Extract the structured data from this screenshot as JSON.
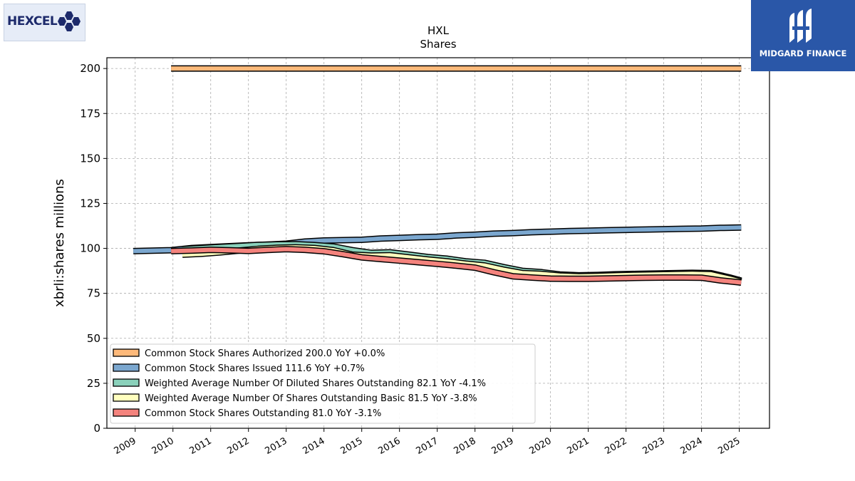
{
  "logos": {
    "left": "HEXCEL",
    "right": "MIDGARD FINANCE"
  },
  "chart_data": {
    "type": "line",
    "title": "HXL",
    "subtitle": "Shares",
    "ylabel": "xbrli:shares millions",
    "xlabel": "",
    "ylim": [
      0,
      206
    ],
    "yticks": [
      0,
      25,
      50,
      75,
      100,
      125,
      150,
      175,
      200
    ],
    "xticks": [
      "2009",
      "2010",
      "2011",
      "2012",
      "2013",
      "2014",
      "2015",
      "2016",
      "2017",
      "2018",
      "2019",
      "2020",
      "2021",
      "2022",
      "2023",
      "2024",
      "2025"
    ],
    "xlim": [
      2008.25,
      2025.8
    ],
    "grid": true,
    "legend_position": "bottom-left",
    "series": [
      {
        "name": "Common Stock Shares Authorized  200.0 YoY +0.0%",
        "color": "#fdb97a",
        "x": [
          2009.95,
          2025.05
        ],
        "y": [
          200,
          200
        ]
      },
      {
        "name": "Common Stock Shares Issued  111.6 YoY +0.7%",
        "color": "#7ba7cf",
        "x": [
          2008.95,
          2009.95,
          2010.5,
          2011.0,
          2011.5,
          2012.0,
          2012.5,
          2013.0,
          2013.5,
          2014.0,
          2014.5,
          2015.0,
          2015.5,
          2016.0,
          2016.5,
          2017.0,
          2017.5,
          2018.0,
          2018.5,
          2019.0,
          2019.5,
          2020.0,
          2020.5,
          2021.0,
          2021.5,
          2022.0,
          2022.5,
          2023.0,
          2023.5,
          2024.0,
          2024.5,
          2025.05
        ],
        "y": [
          98.5,
          99.0,
          100.2,
          100.7,
          101.2,
          101.7,
          102.1,
          102.6,
          103.8,
          104.4,
          104.6,
          104.8,
          105.5,
          105.8,
          106.2,
          106.5,
          107.2,
          107.6,
          108.2,
          108.5,
          109.0,
          109.3,
          109.6,
          109.8,
          110.1,
          110.3,
          110.5,
          110.7,
          110.9,
          111.0,
          111.4,
          111.6
        ]
      },
      {
        "name": "Weighted Average Number Of Diluted Shares Outstanding  82.1 YoY -4.1%",
        "color": "#8ad1bb",
        "x": [
          2010.25,
          2010.75,
          2011.25,
          2011.75,
          2012.25,
          2012.75,
          2013.25,
          2013.75,
          2014.25,
          2014.75,
          2015.25,
          2015.75,
          2016.25,
          2016.75,
          2017.25,
          2017.75,
          2018.25,
          2018.75,
          2019.25,
          2019.75,
          2020.25,
          2020.75,
          2021.25,
          2021.75,
          2022.25,
          2022.75,
          2023.25,
          2023.75,
          2024.25,
          2024.75,
          2025.05
        ],
        "y": [
          99.5,
          100.2,
          100.8,
          101.3,
          101.9,
          102.2,
          102.3,
          101.8,
          101.0,
          99.0,
          97.5,
          97.8,
          96.5,
          95.2,
          94.3,
          92.8,
          92.0,
          89.6,
          87.5,
          86.8,
          85.5,
          85.0,
          85.2,
          85.6,
          85.8,
          86.0,
          86.2,
          86.4,
          86.2,
          83.8,
          82.1
        ]
      },
      {
        "name": "Weighted Average Number Of Shares Outstanding Basic  81.5 YoY -3.8%",
        "color": "#ffffbe",
        "x": [
          2010.25,
          2010.75,
          2011.25,
          2011.75,
          2012.25,
          2012.75,
          2013.25,
          2013.75,
          2014.25,
          2014.75,
          2015.25,
          2015.75,
          2016.25,
          2016.75,
          2017.25,
          2017.75,
          2018.25,
          2018.75,
          2019.25,
          2019.75,
          2020.25,
          2020.75,
          2021.25,
          2021.75,
          2022.25,
          2022.75,
          2023.25,
          2023.75,
          2024.25,
          2024.75,
          2025.05
        ],
        "y": [
          96.5,
          97.0,
          97.8,
          98.8,
          99.7,
          100.3,
          100.6,
          100.2,
          99.0,
          96.5,
          96.0,
          96.2,
          95.0,
          93.8,
          92.8,
          91.5,
          90.5,
          88.2,
          86.3,
          85.8,
          84.9,
          84.5,
          84.7,
          85.0,
          85.3,
          85.5,
          85.7,
          85.9,
          85.6,
          83.2,
          81.5
        ]
      },
      {
        "name": "Common Stock Shares Outstanding  81.0 YoY -3.1%",
        "color": "#f4837d",
        "x": [
          2009.95,
          2010.5,
          2011.0,
          2011.5,
          2012.0,
          2012.5,
          2013.0,
          2013.5,
          2014.0,
          2014.5,
          2015.0,
          2015.5,
          2016.0,
          2016.5,
          2017.0,
          2017.5,
          2018.0,
          2018.5,
          2019.0,
          2019.5,
          2020.0,
          2020.5,
          2021.0,
          2021.5,
          2022.0,
          2022.5,
          2023.0,
          2023.5,
          2024.0,
          2024.5,
          2025.05
        ],
        "y": [
          98.5,
          98.8,
          99.2,
          98.9,
          98.6,
          99.1,
          99.6,
          99.2,
          98.4,
          96.8,
          95.0,
          94.1,
          93.2,
          92.3,
          91.4,
          90.4,
          89.3,
          86.7,
          84.5,
          83.8,
          83.2,
          83.1,
          83.1,
          83.3,
          83.5,
          83.7,
          83.8,
          83.8,
          83.7,
          82.2,
          81.0
        ]
      }
    ]
  }
}
